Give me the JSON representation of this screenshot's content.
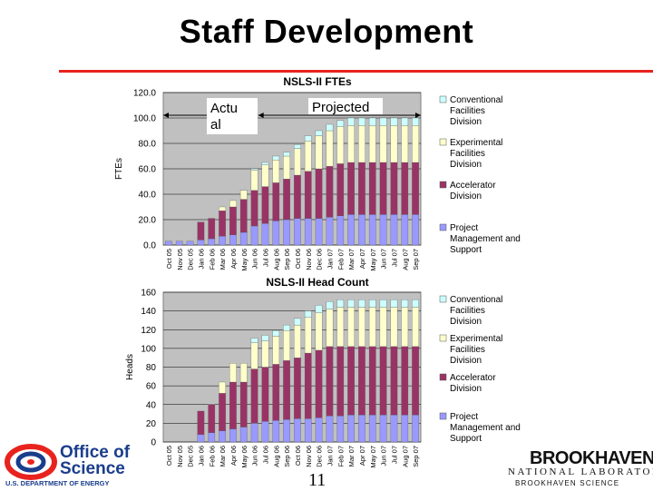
{
  "page": {
    "title": "Staff Development",
    "page_number": "11",
    "colors": {
      "accent_rule": "#e8231e"
    }
  },
  "logos": {
    "doe_office": "Office of",
    "doe_science": "Science",
    "doe_department": "U.S. DEPARTMENT OF ENERGY",
    "bnl_name": "BROOKHAVEN",
    "bnl_lab": "NATIONAL LABORATORY",
    "bnl_science": "BROOKHAVEN SCIENCE"
  },
  "chart_data": [
    {
      "type": "bar",
      "stacked": true,
      "title": "NSLS-II FTEs",
      "ylabel": "FTEs",
      "ylim": [
        0,
        120
      ],
      "yticks": [
        "0.0",
        "20.0",
        "40.0",
        "60.0",
        "80.0",
        "100.0",
        "120.0"
      ],
      "grid": true,
      "legend": "right",
      "annotations": {
        "actual": "Actu al",
        "projected": "Projected"
      },
      "categories": [
        "Oct 05",
        "Nov 05",
        "Dec 05",
        "Jan 06",
        "Feb 06",
        "Mar 06",
        "Apr 06",
        "May 06",
        "Jun 06",
        "Jul 06",
        "Aug 06",
        "Sep 06",
        "Oct 06",
        "Nov 06",
        "Dec 06",
        "Jan 07",
        "Feb 07",
        "Mar 07",
        "Apr 07",
        "May 07",
        "Jun 07",
        "Jul 07",
        "Aug 07",
        "Sep 07"
      ],
      "series": [
        {
          "name": "Project Management and Support",
          "color": "#9999ff",
          "values": [
            3,
            3,
            3,
            4,
            5,
            7,
            8,
            10,
            15,
            17,
            19,
            20,
            21,
            21,
            21,
            22,
            23,
            24,
            24,
            24,
            24,
            24,
            24,
            24
          ]
        },
        {
          "name": "Accelerator Division",
          "color": "#993366",
          "values": [
            0,
            0,
            0,
            14,
            16,
            20,
            22,
            26,
            28,
            29,
            30,
            32,
            34,
            37,
            39,
            40,
            41,
            41,
            41,
            41,
            41,
            41,
            41,
            41
          ]
        },
        {
          "name": "Experimental Facilities Division",
          "color": "#ffffcc",
          "values": [
            0,
            0,
            0,
            0,
            0,
            3,
            5,
            7,
            16,
            17,
            18,
            18,
            21,
            24,
            26,
            28,
            29,
            29,
            29,
            29,
            29,
            29,
            29,
            29
          ]
        },
        {
          "name": "Conventional Facilities Division",
          "color": "#ccffff",
          "values": [
            0,
            0,
            0,
            0,
            0,
            0,
            0,
            0,
            1,
            2,
            3,
            3,
            3,
            4,
            4,
            5,
            5,
            6,
            6,
            6,
            6,
            6,
            6,
            6
          ]
        }
      ]
    },
    {
      "type": "bar",
      "stacked": true,
      "title": "NSLS-II Head Count",
      "ylabel": "Heads",
      "ylim": [
        0,
        160
      ],
      "yticks": [
        "0",
        "20",
        "40",
        "60",
        "80",
        "100",
        "120",
        "140",
        "160"
      ],
      "grid": true,
      "legend": "right",
      "categories": [
        "Oct 05",
        "Nov 05",
        "Dec 05",
        "Jan 06",
        "Feb 06",
        "Mar 06",
        "Apr 06",
        "May 06",
        "Jun 06",
        "Jul 06",
        "Aug 06",
        "Sep 06",
        "Oct 06",
        "Nov 06",
        "Dec 06",
        "Jan 07",
        "Feb 07",
        "Mar 07",
        "Apr 07",
        "May 07",
        "Jun 07",
        "Jul 07",
        "Aug 07",
        "Sep 07"
      ],
      "series": [
        {
          "name": "Project Management and Support",
          "color": "#9999ff",
          "values": [
            0,
            0,
            0,
            8,
            10,
            12,
            14,
            16,
            20,
            22,
            23,
            24,
            25,
            25,
            26,
            28,
            28,
            29,
            29,
            29,
            29,
            29,
            29,
            29
          ]
        },
        {
          "name": "Accelerator Division",
          "color": "#993366",
          "values": [
            0,
            0,
            0,
            25,
            30,
            40,
            50,
            48,
            58,
            58,
            60,
            63,
            65,
            70,
            72,
            74,
            74,
            73,
            73,
            73,
            73,
            73,
            73,
            73
          ]
        },
        {
          "name": "Experimental Facilities Division",
          "color": "#ffffcc",
          "values": [
            0,
            0,
            0,
            0,
            0,
            12,
            20,
            20,
            28,
            28,
            30,
            32,
            35,
            38,
            40,
            40,
            42,
            42,
            42,
            42,
            42,
            42,
            42,
            42
          ]
        },
        {
          "name": "Conventional Facilities Division",
          "color": "#ccffff",
          "values": [
            0,
            0,
            0,
            0,
            0,
            0,
            0,
            0,
            5,
            6,
            6,
            6,
            7,
            7,
            8,
            8,
            8,
            8,
            8,
            8,
            8,
            8,
            8,
            8
          ]
        }
      ]
    }
  ]
}
